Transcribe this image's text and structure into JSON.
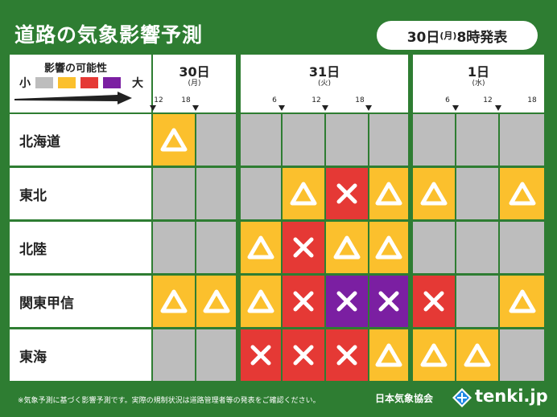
{
  "title": "道路の気象影響予測",
  "issued": {
    "date": "30日",
    "dow": "(月)",
    "time": "8時発表"
  },
  "legend": {
    "title": "影響の可能性",
    "small": "小",
    "large": "大",
    "levels": [
      {
        "name": "none",
        "color": "#bdbdbd"
      },
      {
        "name": "caution",
        "color": "#fbc02d"
      },
      {
        "name": "warning",
        "color": "#e53935"
      },
      {
        "name": "severe",
        "color": "#7b1fa2"
      }
    ]
  },
  "days": [
    {
      "label": "30日",
      "dow": "(月)",
      "ticks": [
        "12",
        "18"
      ]
    },
    {
      "label": "31日",
      "dow": "(火)",
      "ticks": [
        "6",
        "12",
        "18"
      ]
    },
    {
      "label": "1日",
      "dow": "(水)",
      "ticks": [
        "6",
        "12",
        "18"
      ]
    }
  ],
  "regions": [
    {
      "name": "北海道",
      "cells": [
        "yellow",
        "gray",
        "gray",
        "gray",
        "gray",
        "gray",
        "gray",
        "gray",
        "gray"
      ]
    },
    {
      "name": "東北",
      "cells": [
        "gray",
        "gray",
        "gray",
        "yellow",
        "red",
        "yellow",
        "yellow",
        "gray",
        "yellow"
      ]
    },
    {
      "name": "北陸",
      "cells": [
        "gray",
        "gray",
        "yellow",
        "red",
        "yellow",
        "yellow",
        "gray",
        "gray",
        "gray"
      ]
    },
    {
      "name": "関東甲信",
      "cells": [
        "yellow",
        "yellow",
        "yellow",
        "red",
        "purple",
        "purple",
        "red",
        "gray",
        "yellow"
      ]
    },
    {
      "name": "東海",
      "cells": [
        "gray",
        "gray",
        "red",
        "red",
        "red",
        "yellow",
        "yellow",
        "yellow",
        "gray"
      ]
    }
  ],
  "symbols": {
    "yellow": "triangle",
    "red": "cross",
    "purple": "cross",
    "gray": "none"
  },
  "colors": {
    "gray": "#bdbdbd",
    "yellow": "#fbc02d",
    "red": "#e53935",
    "purple": "#7b1fa2",
    "green": "#2e7d32"
  },
  "footnote": "※気象予測に基づく影響予測です。実際の規制状況は道路管理者等の発表をご確認ください。",
  "org": "日本気象協会",
  "brand": "tenki.jp"
}
